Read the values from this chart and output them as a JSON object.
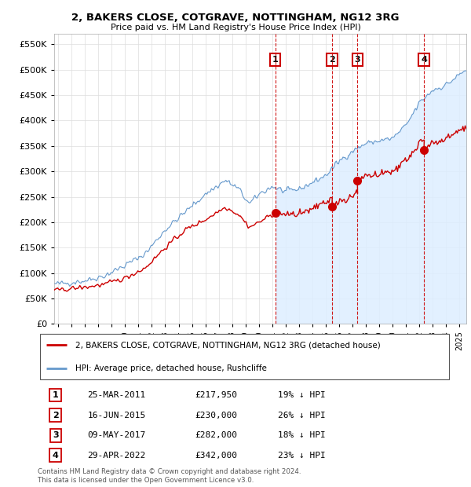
{
  "title1": "2, BAKERS CLOSE, COTGRAVE, NOTTINGHAM, NG12 3RG",
  "title2": "Price paid vs. HM Land Registry's House Price Index (HPI)",
  "legend_line1": "2, BAKERS CLOSE, COTGRAVE, NOTTINGHAM, NG12 3RG (detached house)",
  "legend_line2": "HPI: Average price, detached house, Rushcliffe",
  "footer1": "Contains HM Land Registry data © Crown copyright and database right 2024.",
  "footer2": "This data is licensed under the Open Government Licence v3.0.",
  "transactions": [
    {
      "num": 1,
      "date": "25-MAR-2011",
      "price": "£217,950",
      "pct": "19%",
      "year": 2011.23,
      "price_val": 217950
    },
    {
      "num": 2,
      "date": "16-JUN-2015",
      "price": "£230,000",
      "pct": "26%",
      "year": 2015.46,
      "price_val": 230000
    },
    {
      "num": 3,
      "date": "09-MAY-2017",
      "price": "£282,000",
      "pct": "18%",
      "year": 2017.36,
      "price_val": 282000
    },
    {
      "num": 4,
      "date": "29-APR-2022",
      "price": "£342,000",
      "pct": "23%",
      "year": 2022.33,
      "price_val": 342000
    }
  ],
  "red_color": "#cc0000",
  "blue_color": "#6699cc",
  "blue_fill": "#ddeeff",
  "ylim": [
    0,
    570000
  ],
  "xlim_start": 1994.7,
  "xlim_end": 2025.5,
  "hpi_anchors": [
    [
      1994.7,
      78000
    ],
    [
      1995.5,
      80000
    ],
    [
      1997.0,
      85000
    ],
    [
      1998.5,
      95000
    ],
    [
      2000.0,
      115000
    ],
    [
      2001.5,
      138000
    ],
    [
      2003.0,
      185000
    ],
    [
      2004.5,
      220000
    ],
    [
      2006.0,
      255000
    ],
    [
      2007.5,
      282000
    ],
    [
      2008.5,
      265000
    ],
    [
      2009.3,
      235000
    ],
    [
      2010.0,
      255000
    ],
    [
      2011.0,
      270000
    ],
    [
      2012.0,
      260000
    ],
    [
      2013.0,
      265000
    ],
    [
      2014.0,
      278000
    ],
    [
      2015.0,
      292000
    ],
    [
      2016.0,
      320000
    ],
    [
      2017.0,
      340000
    ],
    [
      2018.0,
      355000
    ],
    [
      2019.0,
      360000
    ],
    [
      2020.0,
      365000
    ],
    [
      2021.0,
      390000
    ],
    [
      2022.0,
      435000
    ],
    [
      2023.0,
      460000
    ],
    [
      2024.0,
      470000
    ],
    [
      2025.0,
      490000
    ],
    [
      2025.5,
      500000
    ]
  ],
  "prop_anchors_pre": [
    [
      1994.7,
      65000
    ],
    [
      1995.5,
      68000
    ],
    [
      1997.0,
      72000
    ],
    [
      1998.5,
      78000
    ],
    [
      2000.0,
      90000
    ],
    [
      2001.5,
      110000
    ],
    [
      2003.0,
      150000
    ],
    [
      2004.5,
      185000
    ],
    [
      2006.0,
      205000
    ],
    [
      2007.5,
      230000
    ],
    [
      2008.5,
      215000
    ],
    [
      2009.3,
      190000
    ],
    [
      2010.0,
      200000
    ],
    [
      2011.23,
      217950
    ]
  ]
}
